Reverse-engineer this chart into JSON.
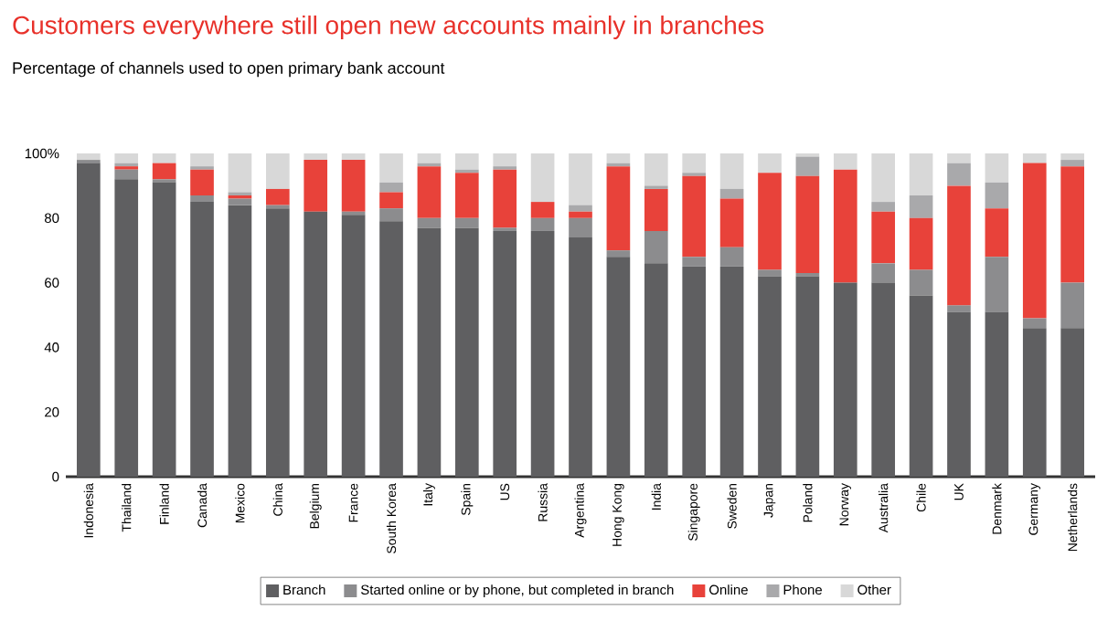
{
  "chart_data": {
    "type": "bar",
    "stacked": true,
    "title": "Customers everywhere still open new accounts mainly in branches",
    "subtitle": "Percentage of channels used to open primary bank account",
    "categories": [
      "Indonesia",
      "Thailand",
      "Finland",
      "Canada",
      "Mexico",
      "China",
      "Belgium",
      "France",
      "South Korea",
      "Italy",
      "Spain",
      "US",
      "Russia",
      "Argentina",
      "Hong Kong",
      "India",
      "Singapore",
      "Sweden",
      "Japan",
      "Poland",
      "Norway",
      "Australia",
      "Chile",
      "UK",
      "Denmark",
      "Germany",
      "Netherlands"
    ],
    "series": [
      {
        "name": "Branch",
        "color": "#5f5f61",
        "values": [
          97,
          92,
          91,
          85,
          84,
          83,
          82,
          81,
          79,
          77,
          77,
          76,
          76,
          74,
          68,
          66,
          65,
          65,
          62,
          62,
          60,
          60,
          56,
          51,
          51,
          46,
          46
        ]
      },
      {
        "name": "Started online or by phone, but completed in branch",
        "color": "#8c8c8e",
        "values": [
          1,
          3,
          1,
          2,
          2,
          1,
          0,
          1,
          4,
          3,
          3,
          1,
          4,
          6,
          2,
          10,
          3,
          6,
          2,
          1,
          0,
          6,
          8,
          2,
          17,
          3,
          14
        ]
      },
      {
        "name": "Online",
        "color": "#e8423a",
        "values": [
          0,
          1,
          5,
          8,
          1,
          5,
          16,
          16,
          5,
          16,
          14,
          18,
          5,
          2,
          26,
          13,
          25,
          15,
          30,
          30,
          35,
          16,
          16,
          37,
          15,
          48,
          36
        ]
      },
      {
        "name": "Phone",
        "color": "#a9a9ab",
        "values": [
          0,
          1,
          0,
          1,
          1,
          0,
          0,
          0,
          3,
          1,
          1,
          1,
          0,
          2,
          1,
          1,
          1,
          3,
          0,
          6,
          0,
          3,
          7,
          7,
          8,
          0,
          2
        ]
      },
      {
        "name": "Other",
        "color": "#d8d8d8",
        "values": [
          2,
          3,
          3,
          4,
          12,
          11,
          2,
          2,
          9,
          3,
          5,
          4,
          15,
          16,
          3,
          10,
          6,
          11,
          6,
          1,
          5,
          15,
          13,
          3,
          9,
          3,
          2
        ]
      }
    ],
    "ylim": [
      0,
      100
    ],
    "yticks": [
      0,
      20,
      40,
      60,
      80,
      {
        "value": 100,
        "label": "100%"
      }
    ],
    "grid": false,
    "legend": "bottom"
  }
}
